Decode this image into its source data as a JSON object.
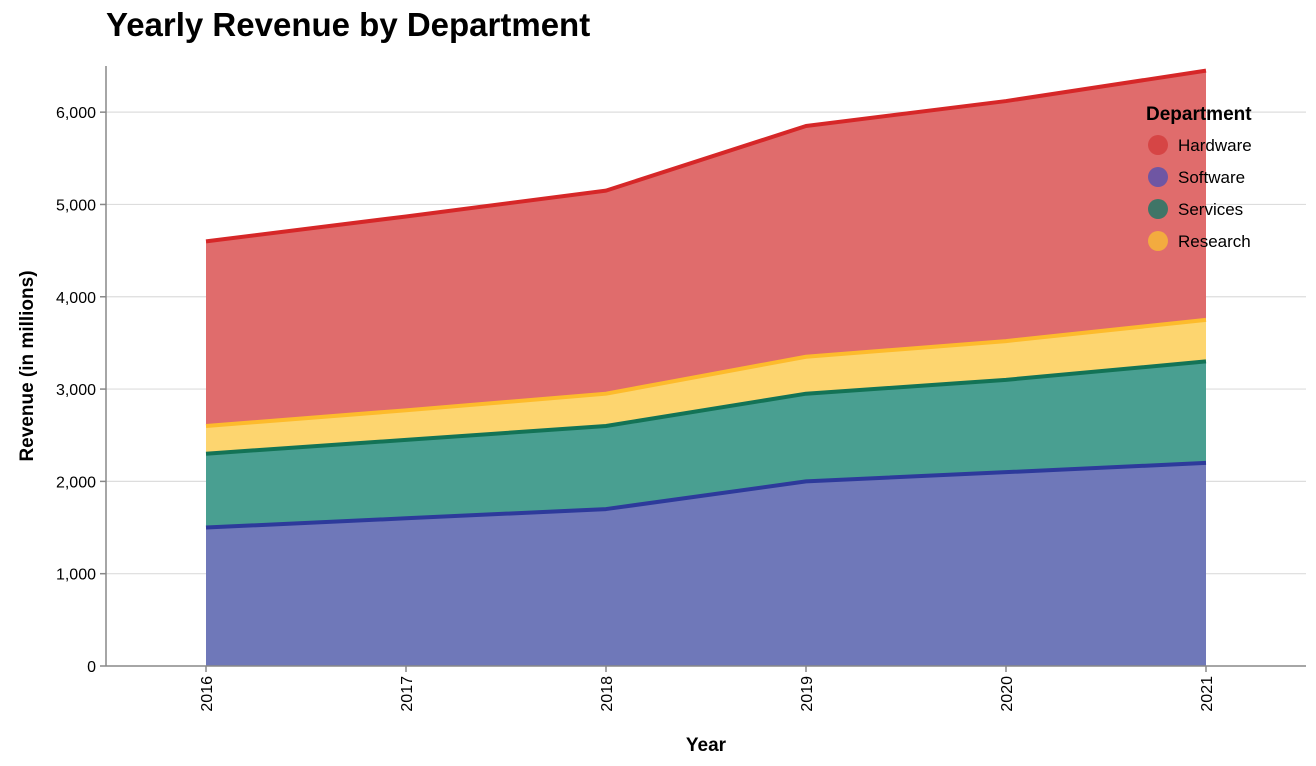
{
  "chart_data": {
    "type": "area",
    "stacked": true,
    "title": "Yearly Revenue by Department",
    "xlabel": "Year",
    "ylabel": "Revenue (in millions)",
    "x": [
      "2016",
      "2017",
      "2018",
      "2019",
      "2020",
      "2021"
    ],
    "ylim": [
      0,
      6500
    ],
    "yticks": [
      0,
      1000,
      2000,
      3000,
      4000,
      5000,
      6000
    ],
    "ytick_labels": [
      "0",
      "1,000",
      "2,000",
      "3,000",
      "4,000",
      "5,000",
      "6,000"
    ],
    "grid": true,
    "legend": {
      "title": "Department",
      "placement": "top-right",
      "entries": [
        "Hardware",
        "Software",
        "Services",
        "Research"
      ]
    },
    "stack_order": [
      "Software",
      "Services",
      "Research",
      "Hardware"
    ],
    "series": [
      {
        "name": "Hardware",
        "values": [
          2000,
          2100,
          2200,
          2500,
          2600,
          2700
        ],
        "color": "#d62728",
        "fill": "#e06c6c"
      },
      {
        "name": "Software",
        "values": [
          1500,
          1600,
          1700,
          2000,
          2100,
          2200
        ],
        "color": "#2d3a9b",
        "fill": "#6f78b9"
      },
      {
        "name": "Services",
        "values": [
          800,
          850,
          900,
          950,
          1000,
          1100
        ],
        "color": "#137356",
        "fill": "#499f91"
      },
      {
        "name": "Research",
        "values": [
          300,
          320,
          350,
          400,
          420,
          450
        ],
        "color": "#fdbb2c",
        "fill": "#fdd56f"
      }
    ],
    "legend_colors": {
      "Hardware": "#d64545",
      "Software": "#6f56a3",
      "Services": "#3f7567",
      "Research": "#f3ab3f"
    }
  }
}
